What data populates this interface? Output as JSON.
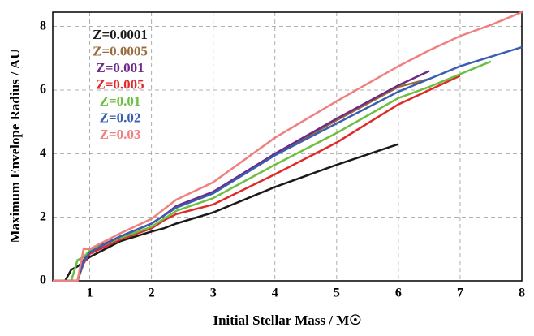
{
  "chart_data": {
    "type": "line",
    "xlabel": "Initial Stellar Mass / M☉",
    "ylabel": "Maximum Envelope Radius / AU",
    "x": [
      0.4,
      0.6,
      0.7,
      0.8,
      0.9,
      1,
      1.5,
      2,
      2.2,
      2.4,
      3,
      4,
      5,
      6,
      6.5,
      7,
      7.5,
      8
    ],
    "series": [
      {
        "name": "Z=0.0001",
        "color": "#1a1a1a",
        "values": [
          0,
          0,
          0.35,
          0.45,
          0.6,
          0.75,
          1.25,
          1.55,
          1.65,
          1.8,
          2.15,
          2.95,
          3.65,
          4.3,
          null,
          null,
          null,
          null
        ]
      },
      {
        "name": "Z=0.0005",
        "color": "#9a6b3a",
        "values": [
          0,
          0,
          0,
          0,
          0.6,
          0.95,
          1.4,
          1.8,
          2.05,
          2.35,
          2.8,
          3.95,
          5.05,
          6.1,
          6.35,
          null,
          null,
          null
        ]
      },
      {
        "name": "Z=0.001",
        "color": "#6e2a87",
        "values": [
          0,
          0,
          0,
          0,
          0.65,
          0.95,
          1.4,
          1.8,
          2.05,
          2.35,
          2.8,
          4.0,
          5.1,
          6.15,
          6.6,
          null,
          null,
          null
        ]
      },
      {
        "name": "Z=0.005",
        "color": "#e02a2a",
        "values": [
          0,
          0,
          0,
          0,
          0.55,
          0.85,
          1.3,
          1.65,
          1.9,
          2.1,
          2.4,
          3.35,
          4.35,
          5.55,
          6.0,
          6.45,
          null,
          null
        ]
      },
      {
        "name": "Z=0.01",
        "color": "#6cbf40",
        "values": [
          0,
          0,
          0,
          0.65,
          0.75,
          0.95,
          1.35,
          1.7,
          1.95,
          2.2,
          2.6,
          3.65,
          4.65,
          5.75,
          6.1,
          6.5,
          6.9,
          null
        ]
      },
      {
        "name": "Z=0.02",
        "color": "#3a5fb0",
        "values": [
          0,
          0,
          0,
          0,
          0.6,
          0.9,
          1.4,
          1.8,
          2.05,
          2.3,
          2.75,
          3.95,
          4.95,
          5.95,
          6.35,
          6.75,
          7.05,
          7.35
        ]
      },
      {
        "name": "Z=0.03",
        "color": "#f08080",
        "values": [
          0,
          0,
          0,
          0,
          1.0,
          1.0,
          1.5,
          1.95,
          2.25,
          2.55,
          3.1,
          4.5,
          5.65,
          6.75,
          7.25,
          7.7,
          8.05,
          8.45
        ]
      }
    ],
    "xlim": [
      0.4,
      8
    ],
    "xticks": [
      1,
      2,
      3,
      4,
      5,
      6,
      7,
      8
    ],
    "ylim": [
      0,
      8.45
    ],
    "yticks": [
      0,
      2,
      4,
      6,
      8
    ],
    "grid": true,
    "legend_position": "upper left"
  }
}
